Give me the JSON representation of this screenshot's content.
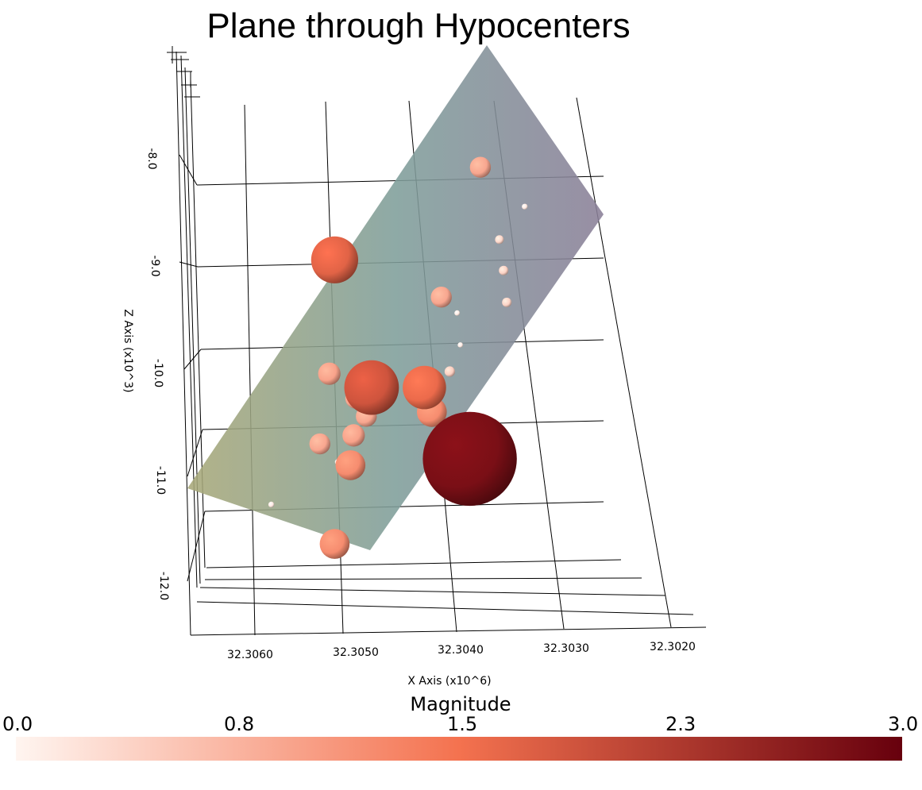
{
  "title": "Plane through Hypocenters",
  "chart_data": {
    "type": "scatter",
    "title": "Plane through Hypocenters",
    "xlabel": "X Axis (x10^6)",
    "zlabel": "Z Axis (x10^3)",
    "x_ticks": [
      "32.3060",
      "32.3050",
      "32.3040",
      "32.3030",
      "32.3020"
    ],
    "z_ticks": [
      "-8.0",
      "-9.0",
      "-10.0",
      "-11.0",
      "-12.0"
    ],
    "xlim": [
      32.3068,
      32.3018
    ],
    "zlim": [
      -12.35,
      -7.45
    ],
    "colorbar": {
      "title": "Magnitude",
      "labels": [
        "0.0",
        "0.8",
        "1.5",
        "2.3",
        "3.0"
      ],
      "range": [
        0.0,
        3.0
      ],
      "color_low": "#fff5f0",
      "color_mid": "#f4724f",
      "color_high": "#67000d"
    },
    "plane_colors": [
      "#a8a878",
      "#7f9e9a",
      "#8a7f98"
    ],
    "grid": true,
    "points": [
      {
        "x": 32.30382,
        "z": -8.08,
        "mag": 0.9
      },
      {
        "x": 32.3034,
        "z": -8.45,
        "mag": 0.15
      },
      {
        "x": 32.30364,
        "z": -8.76,
        "mag": 0.35
      },
      {
        "x": 32.3036,
        "z": -9.05,
        "mag": 0.4
      },
      {
        "x": 32.30357,
        "z": -9.35,
        "mag": 0.4
      },
      {
        "x": 32.30404,
        "z": -9.45,
        "mag": 0.12
      },
      {
        "x": 32.30419,
        "z": -9.3,
        "mag": 0.9
      },
      {
        "x": 32.30401,
        "z": -9.75,
        "mag": 0.1
      },
      {
        "x": 32.3052,
        "z": -8.95,
        "mag": 1.7
      },
      {
        "x": 32.30485,
        "z": -10.15,
        "mag": 1.9
      },
      {
        "x": 32.30435,
        "z": -10.15,
        "mag": 1.6
      },
      {
        "x": 32.30411,
        "z": -10.0,
        "mag": 0.45
      },
      {
        "x": 32.30428,
        "z": -10.38,
        "mag": 1.2
      },
      {
        "x": 32.30525,
        "z": -10.02,
        "mag": 0.95
      },
      {
        "x": 32.305,
        "z": -10.25,
        "mag": 0.9
      },
      {
        "x": 32.3049,
        "z": -10.42,
        "mag": 0.9
      },
      {
        "x": 32.30502,
        "z": -10.6,
        "mag": 0.95
      },
      {
        "x": 32.30534,
        "z": -10.68,
        "mag": 0.9
      },
      {
        "x": 32.30505,
        "z": -10.88,
        "mag": 1.2
      },
      {
        "x": 32.30517,
        "z": -10.85,
        "mag": 0.15
      },
      {
        "x": 32.30392,
        "z": -10.82,
        "mag": 2.8
      },
      {
        "x": 32.3058,
        "z": -11.25,
        "mag": 0.15
      },
      {
        "x": 32.3052,
        "z": -11.62,
        "mag": 1.2
      }
    ]
  }
}
